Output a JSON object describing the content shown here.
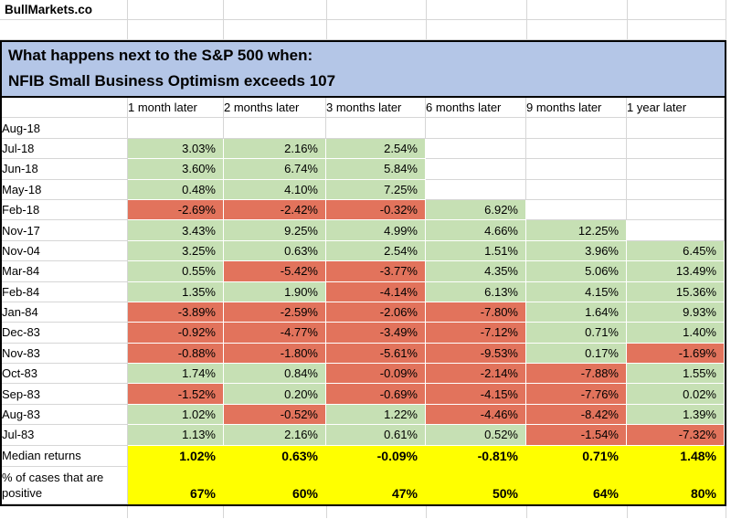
{
  "site": {
    "label": "BullMarkets.co"
  },
  "banner": {
    "line1": "What happens next to the S&P 500 when:",
    "line2": "NFIB Small Business Optimism exceeds 107"
  },
  "chart_data": {
    "type": "table",
    "title": "What happens next to the S&P 500 when: NFIB Small Business Optimism exceeds 107",
    "columns": [
      "1 month later",
      "2 months later",
      "3 months later",
      "6 months later",
      "9 months later",
      "1 year later"
    ],
    "rows": [
      {
        "label": "Aug-18",
        "values": [
          "",
          "",
          "",
          "",
          "",
          ""
        ]
      },
      {
        "label": "Jul-18",
        "values": [
          "3.03%",
          "2.16%",
          "2.54%",
          "",
          "",
          ""
        ]
      },
      {
        "label": "Jun-18",
        "values": [
          "3.60%",
          "6.74%",
          "5.84%",
          "",
          "",
          ""
        ]
      },
      {
        "label": "May-18",
        "values": [
          "0.48%",
          "4.10%",
          "7.25%",
          "",
          "",
          ""
        ]
      },
      {
        "label": "Feb-18",
        "values": [
          "-2.69%",
          "-2.42%",
          "-0.32%",
          "6.92%",
          "",
          ""
        ]
      },
      {
        "label": "Nov-17",
        "values": [
          "3.43%",
          "9.25%",
          "4.99%",
          "4.66%",
          "12.25%",
          ""
        ]
      },
      {
        "label": "Nov-04",
        "values": [
          "3.25%",
          "0.63%",
          "2.54%",
          "1.51%",
          "3.96%",
          "6.45%"
        ]
      },
      {
        "label": "Mar-84",
        "values": [
          "0.55%",
          "-5.42%",
          "-3.77%",
          "4.35%",
          "5.06%",
          "13.49%"
        ]
      },
      {
        "label": "Feb-84",
        "values": [
          "1.35%",
          "1.90%",
          "-4.14%",
          "6.13%",
          "4.15%",
          "15.36%"
        ]
      },
      {
        "label": "Jan-84",
        "values": [
          "-3.89%",
          "-2.59%",
          "-2.06%",
          "-7.80%",
          "1.64%",
          "9.93%"
        ]
      },
      {
        "label": "Dec-83",
        "values": [
          "-0.92%",
          "-4.77%",
          "-3.49%",
          "-7.12%",
          "0.71%",
          "1.40%"
        ]
      },
      {
        "label": "Nov-83",
        "values": [
          "-0.88%",
          "-1.80%",
          "-5.61%",
          "-9.53%",
          "0.17%",
          "-1.69%"
        ]
      },
      {
        "label": "Oct-83",
        "values": [
          "1.74%",
          "0.84%",
          "-0.09%",
          "-2.14%",
          "-7.88%",
          "1.55%"
        ]
      },
      {
        "label": "Sep-83",
        "values": [
          "-1.52%",
          "0.20%",
          "-0.69%",
          "-4.15%",
          "-7.76%",
          "0.02%"
        ]
      },
      {
        "label": "Aug-83",
        "values": [
          "1.02%",
          "-0.52%",
          "1.22%",
          "-4.46%",
          "-8.42%",
          "1.39%"
        ]
      },
      {
        "label": "Jul-83",
        "values": [
          "1.13%",
          "2.16%",
          "0.61%",
          "0.52%",
          "-1.54%",
          "-7.32%"
        ]
      }
    ],
    "summary_rows": [
      {
        "label": "Median returns",
        "values": [
          "1.02%",
          "0.63%",
          "-0.09%",
          "-0.81%",
          "0.71%",
          "1.48%"
        ]
      },
      {
        "label": "% of cases that are positive",
        "values": [
          "67%",
          "60%",
          "47%",
          "50%",
          "64%",
          "80%"
        ]
      }
    ],
    "cell_color_rule": "green fill = positive return, red fill = negative return, yellow fill = summary row",
    "legend_position": "none",
    "grid": true
  },
  "colors": {
    "positive_fill": "#c6e0b4",
    "negative_fill": "#e2735c",
    "summary_fill": "#ffff00",
    "banner_fill": "#b4c6e7",
    "gridline": "#d6d6d6",
    "border": "#000000"
  }
}
